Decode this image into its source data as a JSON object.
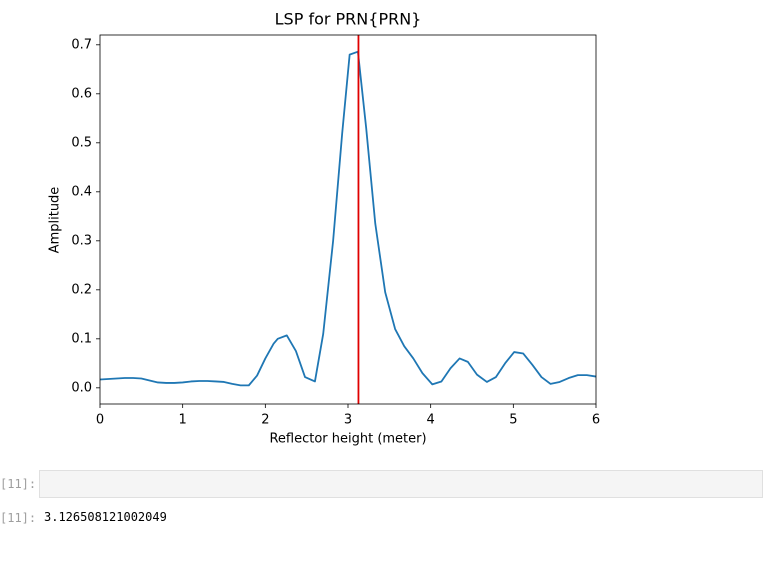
{
  "chart_data": {
    "type": "line",
    "title": "LSP for PRN{PRN}",
    "xlabel": "Reflector height (meter)",
    "ylabel": "Amplitude",
    "x": [
      0,
      0.1,
      0.2,
      0.3,
      0.4,
      0.5,
      0.6,
      0.7,
      0.8,
      0.9,
      1.0,
      1.1,
      1.2,
      1.3,
      1.4,
      1.5,
      1.6,
      1.7,
      1.8,
      1.9,
      2.0,
      2.1,
      2.15,
      2.26,
      2.37,
      2.48,
      2.6,
      2.7,
      2.82,
      2.93,
      3.02,
      3.12,
      3.22,
      3.33,
      3.45,
      3.57,
      3.68,
      3.79,
      3.9,
      4.02,
      4.13,
      4.24,
      4.35,
      4.45,
      4.56,
      4.68,
      4.79,
      4.9,
      5.01,
      5.12,
      5.23,
      5.34,
      5.45,
      5.56,
      5.67,
      5.78,
      5.89,
      6.0
    ],
    "series": [
      {
        "color": "#1f77b4",
        "values": [
          0.017,
          0.018,
          0.019,
          0.02,
          0.02,
          0.019,
          0.015,
          0.011,
          0.01,
          0.01,
          0.011,
          0.013,
          0.014,
          0.014,
          0.013,
          0.012,
          0.008,
          0.005,
          0.005,
          0.025,
          0.06,
          0.09,
          0.1,
          0.107,
          0.075,
          0.022,
          0.013,
          0.11,
          0.3,
          0.52,
          0.68,
          0.686,
          0.53,
          0.335,
          0.195,
          0.12,
          0.085,
          0.06,
          0.03,
          0.007,
          0.013,
          0.04,
          0.06,
          0.053,
          0.027,
          0.012,
          0.022,
          0.05,
          0.073,
          0.07,
          0.047,
          0.022,
          0.008,
          0.012,
          0.02,
          0.026,
          0.026,
          0.023
        ]
      }
    ],
    "vline": 3.126508121002049,
    "vline_color": "#e00000",
    "xlim": [
      0,
      6
    ],
    "xticks": [
      0,
      1,
      2,
      3,
      4,
      5,
      6
    ],
    "ylim": [
      -0.033,
      0.72
    ],
    "yticks": [
      {
        "value": 0,
        "label": "0.0"
      },
      0.1,
      0.2,
      0.3,
      0.4,
      0.5,
      0.6,
      0.7
    ]
  },
  "notebook": {
    "input_prompt": "[11]:",
    "output_prompt": "[11]:"
  }
}
